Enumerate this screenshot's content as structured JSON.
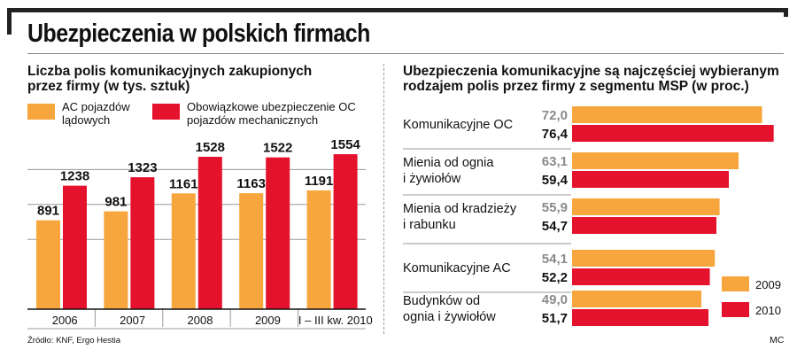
{
  "title": "Ubezpieczenia w polskich firmach",
  "source": "Źródło: KNF, Ergo Hestia",
  "credit": "MC",
  "colors": {
    "orange": "#f6a63c",
    "red": "#e4122c",
    "grey_label": "#8a8a8a"
  },
  "chart_data": [
    {
      "type": "bar",
      "subtitle_lines": [
        "Liczba polis komunikacyjnych zakupionych",
        "przez firmy (w tys. sztuk)"
      ],
      "categories": [
        "2006",
        "2007",
        "2008",
        "2009",
        "I – III kw. 2010"
      ],
      "series": [
        {
          "name_lines": [
            "AC pojazdów",
            "lądowych"
          ],
          "values": [
            891,
            981,
            1161,
            1163,
            1191
          ]
        },
        {
          "name_lines": [
            "Obowiązkowe ubezpieczenie OC",
            "pojazdów mechanicznych"
          ],
          "values": [
            1238,
            1323,
            1528,
            1522,
            1554
          ]
        }
      ],
      "value_labels": [
        [
          "891",
          "981",
          "1161",
          "1163",
          "1191"
        ],
        [
          "1238",
          "1323",
          "1528",
          "1522",
          "1554"
        ]
      ],
      "ylim": [
        0,
        1750
      ],
      "grid": true
    },
    {
      "type": "bar",
      "orientation": "horizontal",
      "subtitle_lines": [
        "Ubezpieczenia komunikacyjne są najczęściej wybieranym",
        "rodzajem polis przez firmy z segmentu MSP (w proc.)"
      ],
      "categories": [
        [
          "Komunikacyjne OC"
        ],
        [
          "Mienia od ognia",
          "i żywiołów"
        ],
        [
          "Mienia od kradzieży",
          "i rabunku"
        ],
        [
          "Komunikacyjne AC"
        ],
        [
          "Budynków od",
          "ognia i żywiołów"
        ]
      ],
      "series": [
        {
          "name": "2009",
          "values": [
            72.0,
            63.1,
            55.9,
            54.1,
            49.0
          ]
        },
        {
          "name": "2010",
          "values": [
            76.4,
            59.4,
            54.7,
            52.2,
            51.7
          ]
        }
      ],
      "value_labels": [
        [
          "72,0",
          "63,1",
          "55,9",
          "54,1",
          "49,0"
        ],
        [
          "76,4",
          "59,4",
          "54,7",
          "52,2",
          "51,7"
        ]
      ],
      "xlim": [
        0,
        100
      ],
      "legend": "bottom-right"
    }
  ]
}
